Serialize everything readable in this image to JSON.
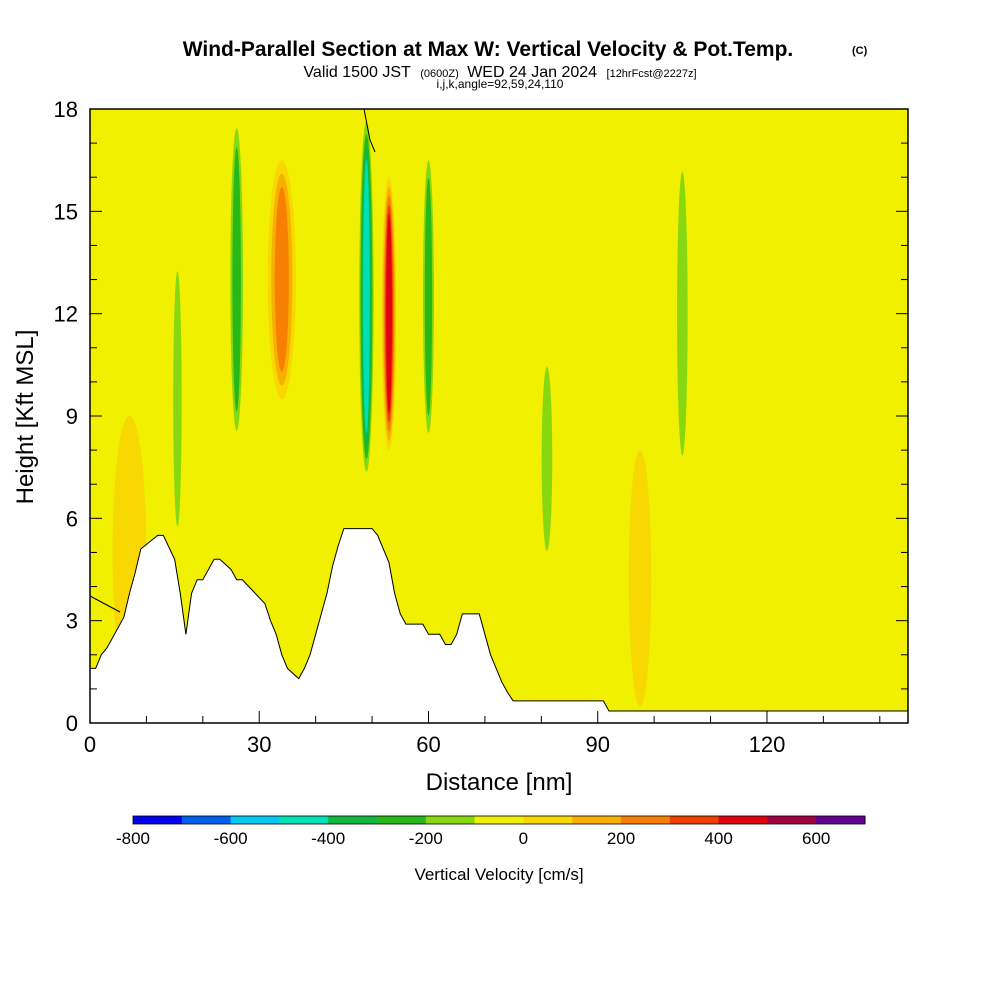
{
  "title": "Wind-Parallel Section at Max W: Vertical Velocity & Pot.Temp.",
  "title_mark": "(C)",
  "subtitle_valid": "Valid 1500 JST",
  "subtitle_utc": "(0600Z)",
  "subtitle_date": "WED 24 Jan 2024",
  "subtitle_fcst": "[12hrFcst@2227z]",
  "subtitle_params": "i,j,k,angle=92,59,24,110",
  "colorbar": {
    "label": "Vertical Velocity [cm/s]",
    "tick_labels": [
      "-800",
      "-600",
      "-400",
      "-200",
      "0",
      "200",
      "400",
      "600"
    ],
    "tick_values": [
      -800,
      -600,
      -400,
      -200,
      0,
      200,
      400,
      600
    ],
    "range": [
      -800,
      700
    ],
    "colors": [
      "#0000f0",
      "#0060f0",
      "#00c8f0",
      "#00e0b8",
      "#10b840",
      "#28b818",
      "#88d810",
      "#f0f000",
      "#f8d800",
      "#f8b000",
      "#f88000",
      "#f04000",
      "#e00010",
      "#a00040",
      "#600090"
    ]
  },
  "chart_data": {
    "type": "heatmap",
    "xlabel": "Distance [nm]",
    "ylabel": "Height [Kft MSL]",
    "xlim": [
      0,
      145
    ],
    "ylim": [
      0,
      18
    ],
    "x_ticks": [
      0,
      30,
      60,
      90,
      120
    ],
    "y_ticks": [
      0,
      3,
      6,
      9,
      12,
      15,
      18
    ],
    "background_value": 0,
    "features": [
      {
        "description": "updraft band",
        "x_center_nm": 7,
        "x_halfwidth_nm": 3,
        "y_range_kft": [
          1,
          9
        ],
        "w_cms": 120
      },
      {
        "description": "downdraft band",
        "x_center_nm": 15.5,
        "x_halfwidth_nm": 1.2,
        "y_range_kft": [
          5,
          14
        ],
        "w_cms": -200
      },
      {
        "description": "downdraft band",
        "x_center_nm": 26,
        "x_halfwidth_nm": 1.5,
        "y_range_kft": [
          8,
          18
        ],
        "w_cms": -300
      },
      {
        "description": "updraft band",
        "x_center_nm": 34,
        "x_halfwidth_nm": 2.5,
        "y_range_kft": [
          9.5,
          16.5
        ],
        "w_cms": 250
      },
      {
        "description": "downdraft band",
        "x_center_nm": 49,
        "x_halfwidth_nm": 1.5,
        "y_range_kft": [
          7,
          18
        ],
        "w_cms": -500
      },
      {
        "description": "updraft band",
        "x_center_nm": 53,
        "x_halfwidth_nm": 1.3,
        "y_range_kft": [
          8,
          16
        ],
        "w_cms": 450
      },
      {
        "description": "downdraft band",
        "x_center_nm": 60,
        "x_halfwidth_nm": 1.3,
        "y_range_kft": [
          8,
          17
        ],
        "w_cms": -250
      },
      {
        "description": "downdraft band",
        "x_center_nm": 81,
        "x_halfwidth_nm": 1.5,
        "y_range_kft": [
          4.5,
          11
        ],
        "w_cms": -150
      },
      {
        "description": "downdraft band",
        "x_center_nm": 105,
        "x_halfwidth_nm": 1.5,
        "y_range_kft": [
          7,
          17
        ],
        "w_cms": -200
      },
      {
        "description": "updraft band",
        "x_center_nm": 97.5,
        "x_halfwidth_nm": 2,
        "y_range_kft": [
          0.5,
          8
        ],
        "w_cms": 120
      }
    ],
    "terrain_kft": {
      "x_nm": [
        0,
        1,
        2,
        3,
        4,
        5,
        6,
        7,
        8,
        9,
        12,
        13,
        15,
        16,
        17,
        18,
        19,
        20,
        22,
        23,
        25,
        26,
        27,
        31,
        32,
        33,
        34,
        35,
        37,
        38,
        39,
        40,
        41,
        42,
        43,
        44,
        45,
        46,
        47,
        48,
        49,
        50,
        51,
        52,
        53,
        54,
        55,
        56,
        57,
        58,
        59,
        60,
        61,
        62,
        63,
        64,
        65,
        66,
        67,
        69,
        70,
        71,
        72,
        73,
        74,
        75,
        80,
        85,
        91,
        92,
        95,
        100,
        110,
        120,
        130,
        140,
        145
      ],
      "height_kft": [
        1.6,
        1.6,
        2.0,
        2.2,
        2.5,
        2.8,
        3.1,
        3.8,
        4.4,
        5.1,
        5.5,
        5.5,
        4.8,
        3.8,
        2.6,
        3.8,
        4.2,
        4.2,
        4.8,
        4.8,
        4.5,
        4.2,
        4.2,
        3.5,
        3.0,
        2.6,
        2.0,
        1.6,
        1.3,
        1.6,
        2.0,
        2.6,
        3.2,
        3.8,
        4.6,
        5.2,
        5.7,
        5.7,
        5.7,
        5.7,
        5.7,
        5.7,
        5.5,
        5.1,
        4.7,
        3.8,
        3.2,
        2.9,
        2.9,
        2.9,
        2.9,
        2.6,
        2.6,
        2.6,
        2.3,
        2.3,
        2.6,
        3.2,
        3.2,
        3.2,
        2.6,
        2.0,
        1.6,
        1.2,
        0.9,
        0.65,
        0.65,
        0.65,
        0.65,
        0.35,
        0.35,
        0.35,
        0.35,
        0.35,
        0.35,
        0.35,
        0.35
      ]
    }
  }
}
